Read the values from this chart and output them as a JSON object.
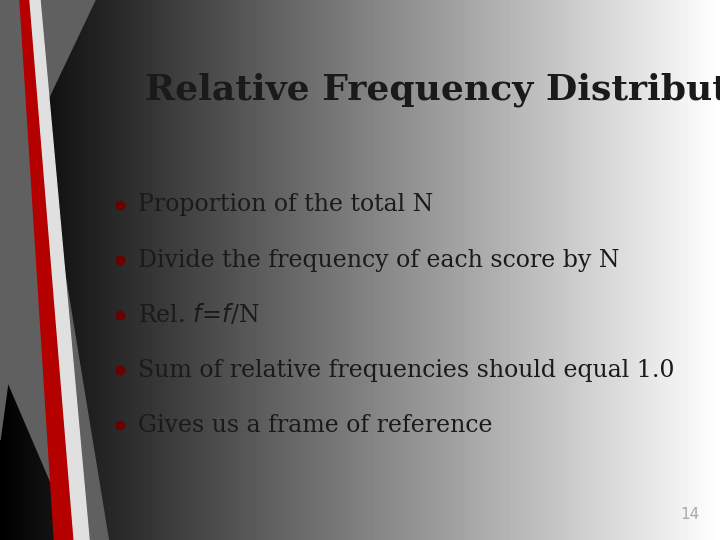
{
  "title": "Relative Frequency Distribution",
  "bullet_points": [
    "Proportion of the total N",
    "Divide the frequency of each score by N",
    "Rel. $f = f$/N",
    "Sum of relative frequencies should equal 1.0",
    "Gives us a frame of reference"
  ],
  "bg_color": "#d4d4d4",
  "title_fontsize": 26,
  "bullet_fontsize": 17,
  "text_color": "#1a1a1a",
  "bullet_color": "#6b0000",
  "slide_number": "14",
  "slide_number_color": "#aaaaaa",
  "red_stripe_color": "#b50000",
  "gray_stripe_color": "#606060",
  "light_gray_stripe": "#c0c0c0"
}
